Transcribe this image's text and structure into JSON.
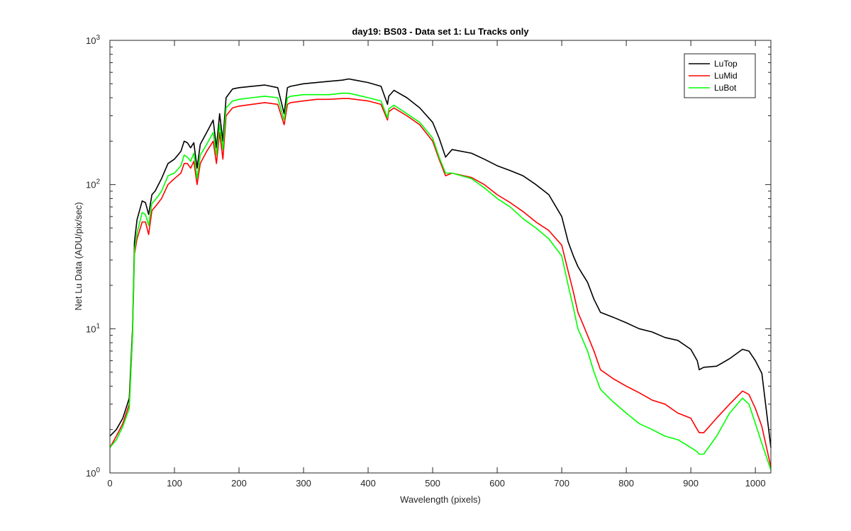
{
  "chart_data": {
    "type": "line",
    "title": "day19: BS03 - Data set 1: Lu Tracks only",
    "xlabel": "Wavelength (pixels)",
    "ylabel": "Net Lu Data (ADU/pix/sec)",
    "xlim": [
      0,
      1024
    ],
    "ylim": [
      1,
      1000
    ],
    "yscale": "log",
    "grid": false,
    "legend_position": "top-right",
    "x_ticks": [
      0,
      100,
      200,
      300,
      400,
      500,
      600,
      700,
      800,
      900,
      1000
    ],
    "x_tick_labels": [
      "0",
      "100",
      "200",
      "300",
      "400",
      "500",
      "600",
      "700",
      "800",
      "900",
      "1000"
    ],
    "y_ticks": [
      1,
      10,
      100,
      1000
    ],
    "y_tick_labels": [
      {
        "base": "10",
        "exp": "0"
      },
      {
        "base": "10",
        "exp": "1"
      },
      {
        "base": "10",
        "exp": "2"
      },
      {
        "base": "10",
        "exp": "3"
      }
    ],
    "series": [
      {
        "name": "LuTop",
        "color": "#000000",
        "x": [
          0,
          10,
          20,
          30,
          35,
          38,
          42,
          50,
          55,
          60,
          65,
          70,
          80,
          90,
          100,
          110,
          115,
          120,
          125,
          130,
          135,
          140,
          150,
          160,
          165,
          170,
          175,
          180,
          190,
          200,
          220,
          240,
          260,
          270,
          275,
          280,
          300,
          320,
          340,
          360,
          370,
          380,
          400,
          420,
          430,
          432,
          440,
          460,
          480,
          500,
          510,
          520,
          530,
          560,
          580,
          600,
          620,
          640,
          660,
          680,
          700,
          710,
          718,
          725,
          732,
          740,
          750,
          760,
          780,
          800,
          820,
          840,
          860,
          880,
          900,
          910,
          913,
          920,
          940,
          960,
          980,
          990,
          1000,
          1010,
          1024
        ],
        "values": [
          1.8,
          2.0,
          2.4,
          3.3,
          10,
          40,
          57,
          77,
          75,
          62,
          85,
          90,
          110,
          140,
          150,
          170,
          200,
          195,
          180,
          195,
          130,
          190,
          230,
          280,
          180,
          310,
          200,
          400,
          460,
          470,
          480,
          490,
          470,
          310,
          470,
          480,
          500,
          510,
          520,
          530,
          540,
          530,
          510,
          480,
          360,
          410,
          450,
          400,
          340,
          270,
          210,
          155,
          175,
          165,
          150,
          135,
          125,
          115,
          100,
          85,
          60,
          40,
          32,
          27,
          24,
          21,
          16,
          13,
          12,
          11,
          10,
          9.5,
          8.7,
          8.3,
          7.2,
          6.0,
          5.2,
          5.4,
          5.5,
          6.2,
          7.2,
          7.0,
          6.0,
          4.9,
          1.5
        ]
      },
      {
        "name": "LuMid",
        "color": "#ff0000",
        "x": [
          0,
          10,
          20,
          30,
          35,
          38,
          42,
          50,
          55,
          60,
          65,
          70,
          80,
          90,
          100,
          110,
          115,
          120,
          125,
          130,
          135,
          140,
          150,
          160,
          165,
          170,
          175,
          180,
          190,
          200,
          220,
          240,
          260,
          270,
          275,
          280,
          300,
          320,
          340,
          360,
          370,
          380,
          400,
          420,
          430,
          432,
          440,
          460,
          480,
          500,
          510,
          520,
          530,
          560,
          580,
          600,
          620,
          640,
          660,
          680,
          700,
          710,
          718,
          725,
          732,
          740,
          750,
          760,
          780,
          800,
          820,
          840,
          860,
          880,
          900,
          910,
          913,
          920,
          940,
          960,
          980,
          990,
          1000,
          1010,
          1024
        ],
        "values": [
          1.5,
          1.8,
          2.2,
          3.0,
          9,
          33,
          42,
          55,
          55,
          45,
          66,
          70,
          80,
          100,
          110,
          120,
          140,
          140,
          130,
          145,
          100,
          140,
          170,
          200,
          140,
          230,
          150,
          300,
          340,
          350,
          360,
          370,
          360,
          260,
          360,
          370,
          380,
          390,
          390,
          395,
          395,
          390,
          380,
          360,
          280,
          320,
          340,
          300,
          260,
          200,
          150,
          115,
          120,
          112,
          100,
          85,
          75,
          65,
          55,
          48,
          38,
          25,
          18,
          13,
          11,
          9,
          7,
          5.2,
          4.5,
          4.0,
          3.6,
          3.2,
          3.0,
          2.6,
          2.4,
          2.0,
          1.9,
          1.9,
          2.4,
          3.0,
          3.7,
          3.5,
          2.8,
          2.1,
          1.1
        ]
      },
      {
        "name": "LuBot",
        "color": "#00ff00",
        "x": [
          0,
          10,
          20,
          30,
          35,
          38,
          42,
          50,
          55,
          60,
          65,
          70,
          80,
          90,
          100,
          110,
          115,
          120,
          125,
          130,
          135,
          140,
          150,
          160,
          165,
          170,
          175,
          180,
          190,
          200,
          220,
          240,
          260,
          270,
          275,
          280,
          300,
          320,
          340,
          360,
          370,
          380,
          400,
          420,
          430,
          432,
          440,
          460,
          480,
          500,
          510,
          520,
          530,
          560,
          580,
          600,
          620,
          640,
          660,
          680,
          700,
          710,
          718,
          725,
          732,
          740,
          750,
          760,
          780,
          800,
          820,
          840,
          860,
          880,
          900,
          910,
          913,
          920,
          940,
          960,
          980,
          990,
          1000,
          1010,
          1024
        ],
        "values": [
          1.5,
          1.7,
          2.1,
          2.8,
          9,
          35,
          46,
          64,
          62,
          52,
          74,
          78,
          90,
          115,
          120,
          135,
          160,
          155,
          145,
          165,
          110,
          160,
          190,
          230,
          160,
          260,
          175,
          340,
          380,
          390,
          400,
          410,
          400,
          280,
          400,
          410,
          420,
          420,
          420,
          430,
          430,
          420,
          400,
          380,
          290,
          335,
          355,
          310,
          270,
          210,
          155,
          120,
          120,
          110,
          95,
          80,
          70,
          58,
          50,
          42,
          32,
          20,
          14,
          10,
          8.5,
          7,
          5,
          3.8,
          3.1,
          2.6,
          2.2,
          2.0,
          1.8,
          1.7,
          1.5,
          1.4,
          1.35,
          1.35,
          1.8,
          2.6,
          3.3,
          3.0,
          2.2,
          1.6,
          1.05
        ]
      }
    ]
  }
}
